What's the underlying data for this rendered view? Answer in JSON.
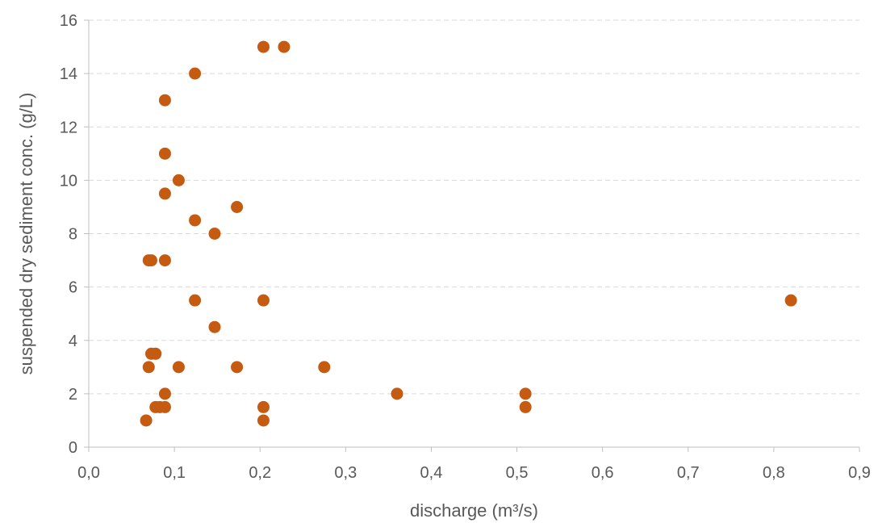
{
  "chart_data": {
    "type": "scatter",
    "title": "",
    "xlabel": "discharge (m³/s)",
    "ylabel": "suspended dry sediment conc. (g/L)",
    "xlim": [
      0,
      0.9
    ],
    "ylim": [
      0,
      16
    ],
    "x_ticks": [
      "0,0",
      "0,1",
      "0,2",
      "0,3",
      "0,4",
      "0,5",
      "0,6",
      "0,7",
      "0,8",
      "0,9"
    ],
    "y_ticks": [
      "0",
      "2",
      "4",
      "6",
      "8",
      "10",
      "12",
      "14",
      "16"
    ],
    "grid": "horizontal dashed",
    "legend": "none",
    "marker_color": "#C55A11",
    "points": [
      {
        "x": 0.067,
        "y": 1.0
      },
      {
        "x": 0.07,
        "y": 3.0
      },
      {
        "x": 0.07,
        "y": 7.0
      },
      {
        "x": 0.073,
        "y": 3.5
      },
      {
        "x": 0.073,
        "y": 7.0
      },
      {
        "x": 0.078,
        "y": 1.5
      },
      {
        "x": 0.078,
        "y": 3.5
      },
      {
        "x": 0.083,
        "y": 1.5
      },
      {
        "x": 0.089,
        "y": 1.5
      },
      {
        "x": 0.089,
        "y": 2.0
      },
      {
        "x": 0.089,
        "y": 7.0
      },
      {
        "x": 0.089,
        "y": 9.5
      },
      {
        "x": 0.089,
        "y": 11.0
      },
      {
        "x": 0.089,
        "y": 13.0
      },
      {
        "x": 0.105,
        "y": 3.0
      },
      {
        "x": 0.105,
        "y": 10.0
      },
      {
        "x": 0.124,
        "y": 5.5
      },
      {
        "x": 0.124,
        "y": 8.5
      },
      {
        "x": 0.124,
        "y": 14.0
      },
      {
        "x": 0.147,
        "y": 4.5
      },
      {
        "x": 0.147,
        "y": 8.0
      },
      {
        "x": 0.173,
        "y": 3.0
      },
      {
        "x": 0.173,
        "y": 9.0
      },
      {
        "x": 0.204,
        "y": 1.0
      },
      {
        "x": 0.204,
        "y": 1.5
      },
      {
        "x": 0.204,
        "y": 5.5
      },
      {
        "x": 0.204,
        "y": 15.0
      },
      {
        "x": 0.228,
        "y": 15.0
      },
      {
        "x": 0.275,
        "y": 3.0
      },
      {
        "x": 0.36,
        "y": 2.0
      },
      {
        "x": 0.51,
        "y": 1.5
      },
      {
        "x": 0.51,
        "y": 2.0
      },
      {
        "x": 0.82,
        "y": 5.5
      }
    ]
  }
}
